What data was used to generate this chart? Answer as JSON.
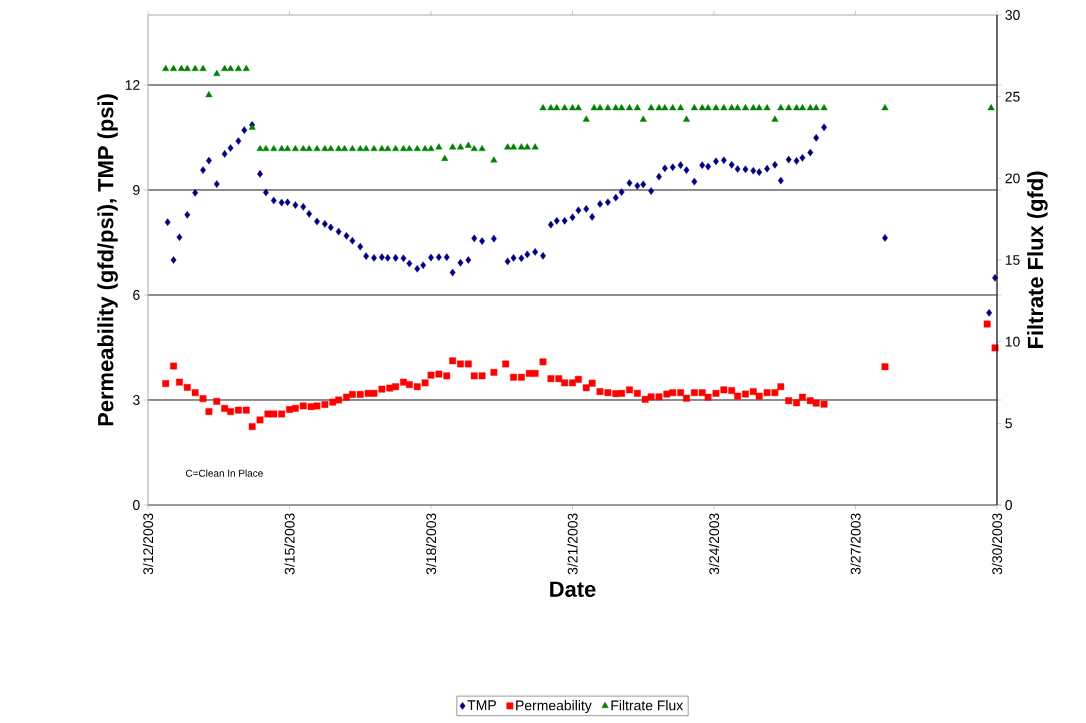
{
  "chart_data": {
    "type": "scatter",
    "xlabel": "Date",
    "ylabel": "Permeability (gfd/psi), TMP (psi)",
    "y2label": "Filtrate Flux (gfd)",
    "xlim": [
      "2003-03-12",
      "2003-03-30"
    ],
    "xticks": [
      {
        "value": "2003-03-12",
        "label": "3/12/2003"
      },
      {
        "value": "2003-03-15",
        "label": "3/15/2003"
      },
      {
        "value": "2003-03-18",
        "label": "3/18/2003"
      },
      {
        "value": "2003-03-21",
        "label": "3/21/2003"
      },
      {
        "value": "2003-03-24",
        "label": "3/24/2003"
      },
      {
        "value": "2003-03-27",
        "label": "3/27/2003"
      },
      {
        "value": "2003-03-30",
        "label": "3/30/2003"
      }
    ],
    "ylim": [
      0,
      14
    ],
    "yticks": [
      0,
      3,
      6,
      9,
      12
    ],
    "y2lim": [
      0,
      30
    ],
    "y2ticks": [
      0,
      5,
      10,
      15,
      20,
      25,
      30
    ],
    "grid": "y",
    "legend": "bottom",
    "annotations": [
      "C=Clean In Place"
    ],
    "series": [
      {
        "name": "TMP",
        "color": "#000080",
        "marker": "diamond",
        "x": [
          "2003-03-12T10:00",
          "2003-03-12T13:00",
          "2003-03-12T16:00",
          "2003-03-12T20:00",
          "2003-03-13T00:00",
          "2003-03-13T04:00",
          "2003-03-13T07:00",
          "2003-03-13T11:00",
          "2003-03-13T15:00",
          "2003-03-13T18:00",
          "2003-03-13T22:00",
          "2003-03-14T01:00",
          "2003-03-14T05:00",
          "2003-03-14T09:00",
          "2003-03-14T12:00",
          "2003-03-14T16:00",
          "2003-03-14T20:00",
          "2003-03-14T23:00",
          "2003-03-15T03:00",
          "2003-03-15T07:00",
          "2003-03-15T10:00",
          "2003-03-15T14:00",
          "2003-03-15T18:00",
          "2003-03-15T21:00",
          "2003-03-16T01:00",
          "2003-03-16T05:00",
          "2003-03-16T08:00",
          "2003-03-16T12:00",
          "2003-03-16T15:00",
          "2003-03-16T19:00",
          "2003-03-16T23:00",
          "2003-03-17T02:00",
          "2003-03-17T06:00",
          "2003-03-17T10:00",
          "2003-03-17T13:00",
          "2003-03-17T17:00",
          "2003-03-17T20:00",
          "2003-03-18T00:00",
          "2003-03-18T04:00",
          "2003-03-18T08:00",
          "2003-03-18T11:00",
          "2003-03-18T15:00",
          "2003-03-18T19:00",
          "2003-03-18T22:00",
          "2003-03-19T02:00",
          "2003-03-19T08:00",
          "2003-03-19T15:00",
          "2003-03-19T18:00",
          "2003-03-19T22:00",
          "2003-03-20T01:00",
          "2003-03-20T05:00",
          "2003-03-20T09:00",
          "2003-03-20T13:00",
          "2003-03-20T16:00",
          "2003-03-20T20:00",
          "2003-03-21T00:00",
          "2003-03-21T03:00",
          "2003-03-21T07:00",
          "2003-03-21T10:00",
          "2003-03-21T14:00",
          "2003-03-21T18:00",
          "2003-03-21T22:00",
          "2003-03-22T01:00",
          "2003-03-22T05:00",
          "2003-03-22T09:00",
          "2003-03-22T12:00",
          "2003-03-22T16:00",
          "2003-03-22T20:00",
          "2003-03-22T23:00",
          "2003-03-23T03:00",
          "2003-03-23T07:00",
          "2003-03-23T10:00",
          "2003-03-23T14:00",
          "2003-03-23T18:00",
          "2003-03-23T21:00",
          "2003-03-24T01:00",
          "2003-03-24T05:00",
          "2003-03-24T09:00",
          "2003-03-24T12:00",
          "2003-03-24T16:00",
          "2003-03-24T20:00",
          "2003-03-24T23:00",
          "2003-03-25T03:00",
          "2003-03-25T07:00",
          "2003-03-25T10:00",
          "2003-03-25T14:00",
          "2003-03-25T18:00",
          "2003-03-25T21:00",
          "2003-03-26T01:00",
          "2003-03-26T04:00",
          "2003-03-26T08:00",
          "2003-03-27T15:00",
          "2003-03-29T20:00",
          "2003-03-29T23:00"
        ],
        "values": [
          8.08,
          7.0,
          7.65,
          8.29,
          8.92,
          9.57,
          9.84,
          9.17,
          10.03,
          10.2,
          10.4,
          10.71,
          10.86,
          9.46,
          8.93,
          8.7,
          8.64,
          8.65,
          8.57,
          8.52,
          8.32,
          8.1,
          8.03,
          7.93,
          7.81,
          7.69,
          7.55,
          7.38,
          7.11,
          7.06,
          7.08,
          7.06,
          7.06,
          7.05,
          6.9,
          6.75,
          6.85,
          7.07,
          7.08,
          7.08,
          6.64,
          6.92,
          7.0,
          7.62,
          7.54,
          7.61,
          6.96,
          7.06,
          7.05,
          7.16,
          7.23,
          7.12,
          8.01,
          8.12,
          8.12,
          8.22,
          8.42,
          8.46,
          8.23,
          8.6,
          8.65,
          8.78,
          8.94,
          9.2,
          9.12,
          9.16,
          8.97,
          9.38,
          9.62,
          9.65,
          9.71,
          9.57,
          9.24,
          9.71,
          9.67,
          9.82,
          9.85,
          9.72,
          9.6,
          9.59,
          9.55,
          9.51,
          9.61,
          9.72,
          9.27,
          9.87,
          9.83,
          9.92,
          10.07,
          10.49,
          10.79,
          7.63,
          5.49,
          6.49
        ]
      },
      {
        "name": "Permeability",
        "color": "#ff0000",
        "marker": "square",
        "x": [
          "2003-03-12T09:00",
          "2003-03-12T13:00",
          "2003-03-12T16:00",
          "2003-03-12T20:00",
          "2003-03-13T00:00",
          "2003-03-13T04:00",
          "2003-03-13T07:00",
          "2003-03-13T11:00",
          "2003-03-13T15:00",
          "2003-03-13T18:00",
          "2003-03-13T22:00",
          "2003-03-14T02:00",
          "2003-03-14T05:00",
          "2003-03-14T09:00",
          "2003-03-14T13:00",
          "2003-03-14T16:00",
          "2003-03-14T20:00",
          "2003-03-15T00:00",
          "2003-03-15T03:00",
          "2003-03-15T07:00",
          "2003-03-15T11:00",
          "2003-03-15T14:00",
          "2003-03-15T18:00",
          "2003-03-15T22:00",
          "2003-03-16T01:00",
          "2003-03-16T05:00",
          "2003-03-16T08:00",
          "2003-03-16T12:00",
          "2003-03-16T16:00",
          "2003-03-16T19:00",
          "2003-03-16T23:00",
          "2003-03-17T03:00",
          "2003-03-17T06:00",
          "2003-03-17T10:00",
          "2003-03-17T13:00",
          "2003-03-17T17:00",
          "2003-03-17T21:00",
          "2003-03-18T00:00",
          "2003-03-18T04:00",
          "2003-03-18T08:00",
          "2003-03-18T11:00",
          "2003-03-18T15:00",
          "2003-03-18T19:00",
          "2003-03-18T22:00",
          "2003-03-19T02:00",
          "2003-03-19T08:00",
          "2003-03-19T14:00",
          "2003-03-19T18:00",
          "2003-03-19T22:00",
          "2003-03-20T02:00",
          "2003-03-20T05:00",
          "2003-03-20T09:00",
          "2003-03-20T13:00",
          "2003-03-20T17:00",
          "2003-03-20T20:00",
          "2003-03-21T00:00",
          "2003-03-21T03:00",
          "2003-03-21T07:00",
          "2003-03-21T10:00",
          "2003-03-21T14:00",
          "2003-03-21T18:00",
          "2003-03-21T22:00",
          "2003-03-22T01:00",
          "2003-03-22T05:00",
          "2003-03-22T09:00",
          "2003-03-22T13:00",
          "2003-03-22T16:00",
          "2003-03-22T20:00",
          "2003-03-23T00:00",
          "2003-03-23T03:00",
          "2003-03-23T07:00",
          "2003-03-23T10:00",
          "2003-03-23T14:00",
          "2003-03-23T18:00",
          "2003-03-23T21:00",
          "2003-03-24T01:00",
          "2003-03-24T05:00",
          "2003-03-24T09:00",
          "2003-03-24T12:00",
          "2003-03-24T16:00",
          "2003-03-24T20:00",
          "2003-03-24T23:00",
          "2003-03-25T03:00",
          "2003-03-25T07:00",
          "2003-03-25T10:00",
          "2003-03-25T14:00",
          "2003-03-25T18:00",
          "2003-03-25T21:00",
          "2003-03-26T01:00",
          "2003-03-26T04:00",
          "2003-03-26T08:00",
          "2003-03-27T15:00",
          "2003-03-29T19:00",
          "2003-03-29T23:00"
        ],
        "values": [
          3.47,
          3.97,
          3.51,
          3.36,
          3.21,
          3.04,
          2.67,
          2.96,
          2.76,
          2.67,
          2.71,
          2.71,
          2.24,
          2.43,
          2.6,
          2.6,
          2.6,
          2.73,
          2.76,
          2.83,
          2.81,
          2.83,
          2.87,
          2.94,
          3.0,
          3.08,
          3.16,
          3.16,
          3.19,
          3.19,
          3.31,
          3.34,
          3.38,
          3.51,
          3.44,
          3.38,
          3.49,
          3.71,
          3.74,
          3.69,
          4.12,
          4.03,
          4.03,
          3.69,
          3.69,
          3.79,
          4.03,
          3.65,
          3.65,
          3.76,
          3.76,
          4.09,
          3.61,
          3.61,
          3.49,
          3.49,
          3.59,
          3.35,
          3.48,
          3.24,
          3.21,
          3.18,
          3.19,
          3.29,
          3.19,
          3.02,
          3.09,
          3.09,
          3.17,
          3.21,
          3.21,
          3.05,
          3.21,
          3.21,
          3.08,
          3.19,
          3.29,
          3.27,
          3.11,
          3.17,
          3.24,
          3.11,
          3.21,
          3.21,
          3.38,
          2.98,
          2.92,
          3.08,
          2.98,
          2.91,
          2.88,
          3.95,
          5.17,
          4.49
        ]
      },
      {
        "name": "Filtrate Flux",
        "color": "#008000",
        "marker": "triangle",
        "axis": "y2",
        "x": [
          "2003-03-12T09:00",
          "2003-03-12T13:00",
          "2003-03-12T17:00",
          "2003-03-12T20:00",
          "2003-03-13T00:00",
          "2003-03-13T04:00",
          "2003-03-13T07:00",
          "2003-03-13T11:00",
          "2003-03-13T15:00",
          "2003-03-13T18:00",
          "2003-03-13T22:00",
          "2003-03-14T02:00",
          "2003-03-14T05:00",
          "2003-03-14T09:00",
          "2003-03-14T12:00",
          "2003-03-14T16:00",
          "2003-03-14T20:00",
          "2003-03-14T23:00",
          "2003-03-15T03:00",
          "2003-03-15T07:00",
          "2003-03-15T10:00",
          "2003-03-15T14:00",
          "2003-03-15T18:00",
          "2003-03-15T21:00",
          "2003-03-16T01:00",
          "2003-03-16T04:00",
          "2003-03-16T08:00",
          "2003-03-16T12:00",
          "2003-03-16T15:00",
          "2003-03-16T19:00",
          "2003-03-16T23:00",
          "2003-03-17T02:00",
          "2003-03-17T06:00",
          "2003-03-17T10:00",
          "2003-03-17T13:00",
          "2003-03-17T17:00",
          "2003-03-17T21:00",
          "2003-03-18T00:00",
          "2003-03-18T04:00",
          "2003-03-18T07:00",
          "2003-03-18T11:00",
          "2003-03-18T15:00",
          "2003-03-18T19:00",
          "2003-03-18T22:00",
          "2003-03-19T02:00",
          "2003-03-19T08:00",
          "2003-03-19T15:00",
          "2003-03-19T18:00",
          "2003-03-19T22:00",
          "2003-03-20T01:00",
          "2003-03-20T05:00",
          "2003-03-20T09:00",
          "2003-03-20T13:00",
          "2003-03-20T16:00",
          "2003-03-20T20:00",
          "2003-03-21T00:00",
          "2003-03-21T03:00",
          "2003-03-21T07:00",
          "2003-03-21T11:00",
          "2003-03-21T14:00",
          "2003-03-21T18:00",
          "2003-03-21T22:00",
          "2003-03-22T01:00",
          "2003-03-22T05:00",
          "2003-03-22T09:00",
          "2003-03-22T12:00",
          "2003-03-22T16:00",
          "2003-03-22T20:00",
          "2003-03-22T23:00",
          "2003-03-23T03:00",
          "2003-03-23T07:00",
          "2003-03-23T10:00",
          "2003-03-23T14:00",
          "2003-03-23T18:00",
          "2003-03-23T21:00",
          "2003-03-24T01:00",
          "2003-03-24T05:00",
          "2003-03-24T09:00",
          "2003-03-24T12:00",
          "2003-03-24T16:00",
          "2003-03-24T20:00",
          "2003-03-24T23:00",
          "2003-03-25T03:00",
          "2003-03-25T07:00",
          "2003-03-25T10:00",
          "2003-03-25T14:00",
          "2003-03-25T18:00",
          "2003-03-25T21:00",
          "2003-03-26T01:00",
          "2003-03-26T04:00",
          "2003-03-26T08:00",
          "2003-03-27T15:00",
          "2003-03-29T21:00"
        ],
        "values": [
          26.7,
          26.7,
          26.7,
          26.7,
          26.7,
          26.7,
          25.1,
          26.4,
          26.7,
          26.7,
          26.7,
          26.7,
          23.1,
          21.8,
          21.8,
          21.8,
          21.8,
          21.8,
          21.8,
          21.8,
          21.8,
          21.8,
          21.8,
          21.8,
          21.8,
          21.8,
          21.8,
          21.8,
          21.8,
          21.8,
          21.8,
          21.8,
          21.8,
          21.8,
          21.8,
          21.8,
          21.8,
          21.8,
          21.9,
          21.2,
          21.9,
          21.9,
          22.0,
          21.8,
          21.8,
          21.1,
          21.9,
          21.9,
          21.9,
          21.9,
          21.9,
          24.3,
          24.3,
          24.3,
          24.3,
          24.3,
          24.3,
          23.6,
          24.3,
          24.3,
          24.3,
          24.3,
          24.3,
          24.3,
          24.3,
          23.6,
          24.3,
          24.3,
          24.3,
          24.3,
          24.3,
          23.6,
          24.3,
          24.3,
          24.3,
          24.3,
          24.3,
          24.3,
          24.3,
          24.3,
          24.3,
          24.3,
          24.3,
          23.6,
          24.3,
          24.3,
          24.3,
          24.3,
          24.3,
          24.3,
          24.3,
          24.3,
          24.3
        ]
      }
    ]
  }
}
